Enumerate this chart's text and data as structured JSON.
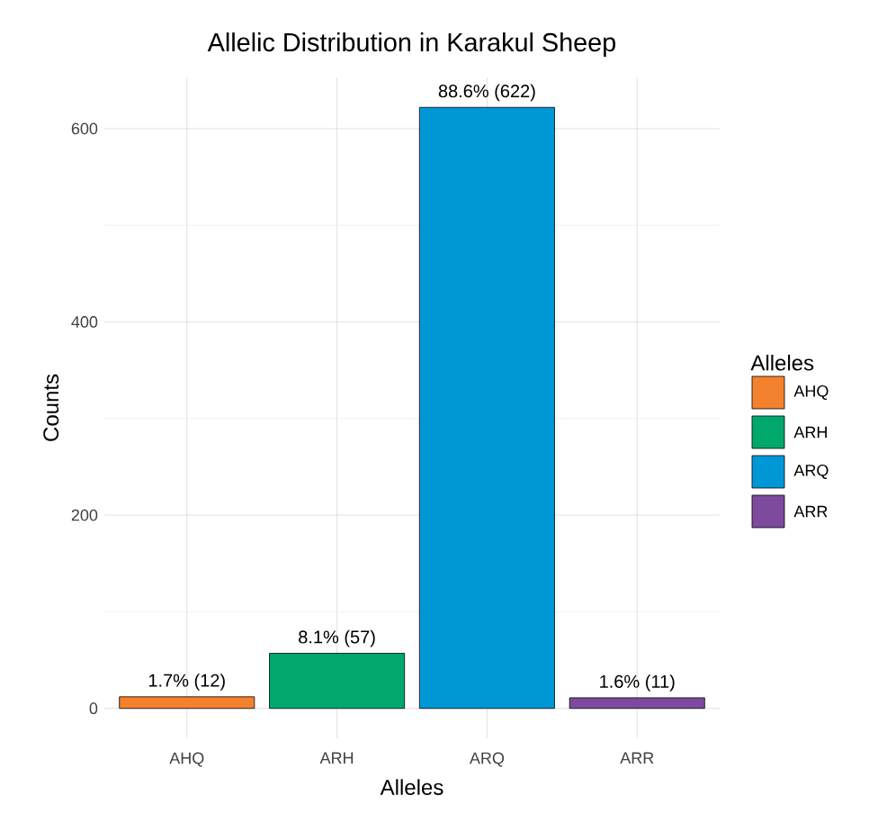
{
  "chart_data": {
    "type": "bar",
    "title": "Allelic Distribution in Karakul Sheep",
    "xlabel": "Alleles",
    "ylabel": "Counts",
    "legend_title": "Alleles",
    "categories": [
      "AHQ",
      "ARH",
      "ARQ",
      "ARR"
    ],
    "series": [
      {
        "name": "AHQ",
        "color": "#f4812d",
        "values": [
          12,
          null,
          null,
          null
        ],
        "value_labels": [
          "1.7% (12)",
          null,
          null,
          null
        ]
      },
      {
        "name": "ARH",
        "color": "#00a86b",
        "values": [
          null,
          57,
          null,
          null
        ],
        "value_labels": [
          null,
          "8.1% (57)",
          null,
          null
        ]
      },
      {
        "name": "ARQ",
        "color": "#0097d7",
        "values": [
          null,
          null,
          622,
          null
        ],
        "value_labels": [
          null,
          null,
          "88.6% (622)",
          null
        ]
      },
      {
        "name": "ARR",
        "color": "#7d4a9e",
        "values": [
          null,
          null,
          null,
          11
        ],
        "value_labels": [
          null,
          null,
          null,
          "1.6% (11)"
        ]
      }
    ],
    "ylim": [
      -31,
      653
    ],
    "yticks": [
      0,
      200,
      400,
      600
    ],
    "grid": true,
    "legend": "right"
  }
}
